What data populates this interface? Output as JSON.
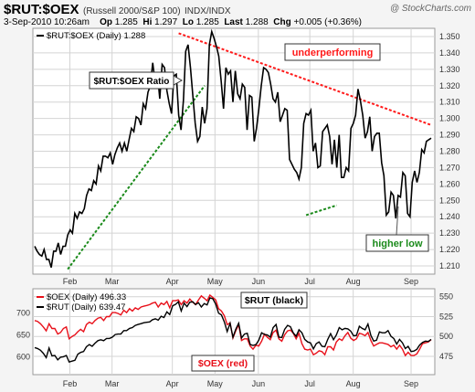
{
  "header": {
    "symbol": "$RUT:$OEX",
    "description": "(Russell 2000/S&P 100)",
    "exchange": "INDX/INDX",
    "brand": "@ StockCharts.com",
    "date": "3-Sep-2010 10:26am",
    "op_label": "Op",
    "op": "1.285",
    "hi_label": "Hi",
    "hi": "1.297",
    "lo_label": "Lo",
    "lo": "1.285",
    "last_label": "Last",
    "last": "1.288",
    "chg_label": "Chg",
    "chg": "+0.005 (+0.36%)"
  },
  "colors": {
    "ratio": "#000000",
    "oex": "#e8101a",
    "trend": "#ff1a1a",
    "support": "#1a8a1a",
    "panel_bg": "#ffffff",
    "grid": "#d4d4d4"
  },
  "chart_data": [
    {
      "type": "line",
      "legend": "$RUT:$OEX (Daily) 1.288",
      "ylim": [
        1.205,
        1.355
      ],
      "yticks": [
        "1.350",
        "1.340",
        "1.330",
        "1.320",
        "1.310",
        "1.300",
        "1.290",
        "1.280",
        "1.270",
        "1.260",
        "1.250",
        "1.240",
        "1.230",
        "1.220",
        "1.210"
      ],
      "xticks": [
        "Feb",
        "Mar",
        "Apr",
        "May",
        "Jun",
        "Jul",
        "Aug",
        "Sep"
      ],
      "series": [
        {
          "name": "$RUT:$OEX",
          "values": [
            1.222,
            1.219,
            1.217,
            1.216,
            1.22,
            1.214,
            1.214,
            1.209,
            1.219,
            1.219,
            1.224,
            1.217,
            1.222,
            1.222,
            1.229,
            1.232,
            1.23,
            1.242,
            1.239,
            1.243,
            1.242,
            1.245,
            1.253,
            1.257,
            1.256,
            1.262,
            1.26,
            1.271,
            1.268,
            1.277,
            1.277,
            1.276,
            1.279,
            1.272,
            1.278,
            1.282,
            1.285,
            1.28,
            1.285,
            1.28,
            1.287,
            1.294,
            1.292,
            1.301,
            1.3,
            1.296,
            1.309,
            1.306,
            1.316,
            1.32,
            1.334,
            1.322,
            1.328,
            1.312,
            1.333,
            1.331,
            1.317,
            1.309,
            1.303,
            1.326,
            1.327,
            1.302,
            1.293,
            1.311,
            1.341,
            1.345,
            1.331,
            1.314,
            1.297,
            1.286,
            1.289,
            1.307,
            1.297,
            1.306,
            1.345,
            1.353,
            1.349,
            1.344,
            1.338,
            1.323,
            1.306,
            1.331,
            1.327,
            1.329,
            1.31,
            1.329,
            1.315,
            1.312,
            1.321,
            1.319,
            1.293,
            1.314,
            1.313,
            1.286,
            1.294,
            1.306,
            1.32,
            1.331,
            1.33,
            1.328,
            1.321,
            1.312,
            1.31,
            1.316,
            1.298,
            1.302,
            1.306,
            1.305,
            1.275,
            1.272,
            1.269,
            1.267,
            1.263,
            1.27,
            1.297,
            1.303,
            1.302,
            1.305,
            1.28,
            1.285,
            1.27,
            1.271,
            1.292,
            1.294,
            1.296,
            1.289,
            1.272,
            1.287,
            1.27,
            1.29,
            1.264,
            1.264,
            1.27,
            1.268,
            1.294,
            1.297,
            1.302,
            1.318,
            1.311,
            1.302,
            1.288,
            1.292,
            1.301,
            1.28,
            1.289,
            1.291,
            1.291,
            1.273,
            1.265,
            1.241,
            1.243,
            1.255,
            1.253,
            1.239,
            1.253,
            1.252,
            1.267,
            1.265,
            1.242,
            1.24,
            1.261,
            1.268,
            1.261,
            1.267,
            1.281,
            1.279,
            1.286,
            1.287,
            1.288
          ]
        }
      ],
      "annotations": {
        "ratio_label": "$RUT:$OEX Ratio",
        "underperforming": "underperforming",
        "higher_low": "higher low"
      },
      "trendlines": [
        {
          "name": "support",
          "points": [
            [
              14,
              1.208
            ],
            [
              72,
              1.32
            ]
          ]
        },
        {
          "name": "resistance",
          "points": [
            [
              61,
              1.352
            ],
            [
              168,
              1.296
            ]
          ]
        },
        {
          "name": "higher-low",
          "points": [
            [
              115,
              1.241
            ],
            [
              128,
              1.247
            ]
          ]
        }
      ]
    },
    {
      "type": "line",
      "series": [
        {
          "name": "$OEX",
          "legend": "$OEX (Daily) 496.33",
          "axis": "right",
          "ylim": [
            452,
            560
          ],
          "values": [
            520,
            519,
            516,
            512,
            507,
            516,
            510,
            510,
            503,
            505,
            510,
            512,
            497,
            500,
            502,
            506,
            509,
            506,
            515,
            518,
            516,
            520,
            523,
            524,
            520,
            525,
            525,
            530,
            530,
            529,
            527,
            533,
            530,
            535,
            532,
            536,
            534,
            537,
            538,
            539,
            540,
            542,
            543,
            537,
            542,
            540,
            544,
            536,
            545,
            545,
            546,
            540,
            545,
            542,
            547,
            543,
            540,
            546,
            551,
            548,
            545,
            552,
            549,
            546,
            535,
            532,
            526,
            515,
            517,
            498,
            507,
            515,
            495,
            497,
            497,
            488,
            484,
            489,
            488,
            494,
            503,
            499,
            496,
            505,
            508,
            497,
            494,
            502,
            507,
            508,
            504,
            497,
            504,
            491,
            484,
            483,
            484,
            477,
            479,
            482,
            481,
            477,
            487,
            487,
            483,
            493,
            497,
            495,
            501,
            505,
            498,
            495,
            497,
            504,
            503,
            501,
            505,
            495,
            488,
            490,
            492,
            492,
            491,
            490,
            487,
            489,
            484,
            489,
            484,
            476,
            480,
            476,
            476,
            478,
            484,
            491,
            492,
            493,
            496
          ]
        },
        {
          "name": "$RUT",
          "legend": "$RUT (Daily) 639.47",
          "axis": "left",
          "ylim": [
            559,
            756
          ],
          "values": [
            621,
            619,
            615,
            608,
            598,
            620,
            602,
            603,
            593,
            599,
            600,
            603,
            588,
            590,
            592,
            606,
            610,
            612,
            623,
            628,
            624,
            631,
            637,
            639,
            637,
            642,
            642,
            645,
            651,
            652,
            652,
            660,
            660,
            665,
            667,
            672,
            674,
            676,
            678,
            679,
            680,
            685,
            687,
            684,
            693,
            690,
            703,
            697,
            717,
            720,
            726,
            705,
            723,
            715,
            725,
            726,
            720,
            724,
            714,
            722,
            719,
            735,
            733,
            721,
            700,
            696,
            680,
            658,
            677,
            645,
            663,
            677,
            643,
            652,
            654,
            628,
            626,
            628,
            638,
            655,
            651,
            650,
            645,
            667,
            674,
            645,
            644,
            663,
            672,
            669,
            655,
            647,
            662,
            655,
            640,
            634,
            632,
            618,
            630,
            634,
            624,
            623,
            640,
            653,
            639,
            650,
            667,
            662,
            665,
            664,
            659,
            648,
            649,
            670,
            665,
            662,
            675,
            649,
            636,
            638,
            657,
            655,
            655,
            660,
            647,
            642,
            629,
            640,
            632,
            619,
            624,
            612,
            613,
            617,
            627,
            633,
            636,
            635,
            640
          ]
        }
      ],
      "left_ticks": [
        "700",
        "650",
        "600"
      ],
      "right_ticks": [
        "550",
        "525",
        "500",
        "475"
      ],
      "xticks": [
        "Feb",
        "Mar",
        "Apr",
        "May",
        "Jun",
        "Jul",
        "Aug",
        "Sep"
      ],
      "annotations": {
        "rut_label": "$RUT (black)",
        "oex_label": "$OEX (red)"
      }
    }
  ]
}
